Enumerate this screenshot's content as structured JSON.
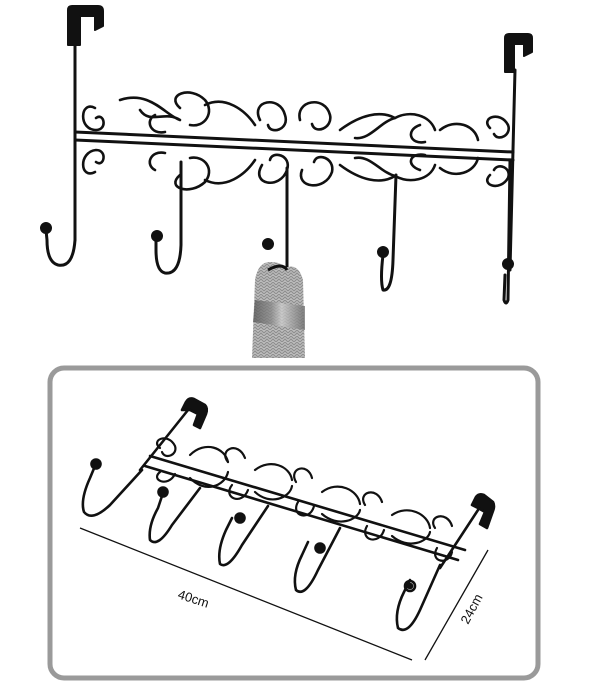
{
  "product_photo": {
    "hook_count": 5,
    "colors": {
      "metal": "#111111",
      "background": "#ffffff",
      "frame": "#9a9a9a"
    }
  },
  "detail_view": {
    "length_label": "40cm",
    "height_label": "24cm"
  }
}
